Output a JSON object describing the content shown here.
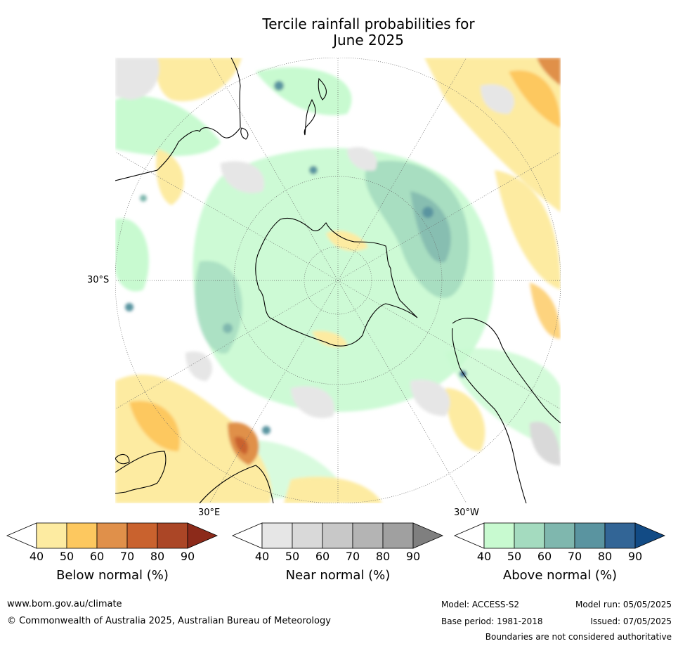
{
  "title": {
    "line1": "Tercile rainfall probabilities for",
    "line2": "June 2025"
  },
  "map": {
    "projection": "south-polar stereographic",
    "lat_label": "30°S",
    "lon_label_east": "30°E",
    "lon_label_west": "30°W"
  },
  "colorbars": [
    {
      "id": "below",
      "title": "Below normal (%)",
      "ticks": [
        "40",
        "50",
        "60",
        "70",
        "80",
        "90"
      ],
      "colors": [
        "#fdeba1",
        "#fdc85f",
        "#e0904a",
        "#c9622e",
        "#ab4626",
        "#8c2a1a"
      ]
    },
    {
      "id": "near",
      "title": "Near normal (%)",
      "ticks": [
        "40",
        "50",
        "60",
        "70",
        "80",
        "90"
      ],
      "colors": [
        "#e6e6e6",
        "#d9d9d9",
        "#c8c8c8",
        "#b4b4b4",
        "#a0a0a0",
        "#7f7f7f"
      ]
    },
    {
      "id": "above",
      "title": "Above normal (%)",
      "ticks": [
        "40",
        "50",
        "60",
        "70",
        "80",
        "90"
      ],
      "colors": [
        "#c8fad0",
        "#a4dbbf",
        "#7fb7ae",
        "#5a94a0",
        "#326596",
        "#124b85"
      ]
    }
  ],
  "footer": {
    "url": "www.bom.gov.au/climate",
    "copyright": "© Commonwealth of Australia 2025, Australian Bureau of Meteorology",
    "model": "Model: ACCESS-S2",
    "base_period": "Base period: 1981-2018",
    "model_run": "Model run: 05/05/2025",
    "issued": "Issued: 07/05/2025",
    "disclaimer": "Boundaries are not considered authoritative"
  }
}
